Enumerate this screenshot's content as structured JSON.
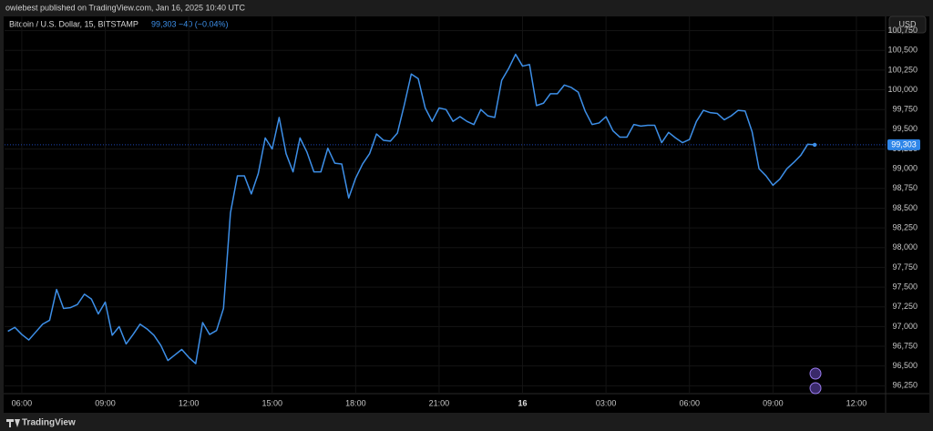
{
  "header": "owiebest published on TradingView.com, Jan 16, 2025 10:40 UTC",
  "footer": "TradingView",
  "chart_data": {
    "type": "line",
    "title": "Bitcoin / U.S. Dollar, 15, BITSTAMP",
    "legend_last": "99,303",
    "legend_change": "−40 (−0.04%)",
    "currency": "USD",
    "color": "#3d8fe8",
    "grid": true,
    "x": [
      5.5,
      5.75,
      6,
      6.25,
      6.5,
      6.75,
      7,
      7.25,
      7.5,
      7.75,
      8,
      8.25,
      8.5,
      8.75,
      9,
      9.25,
      9.5,
      9.75,
      10,
      10.25,
      10.5,
      10.75,
      11,
      11.25,
      11.5,
      11.75,
      12,
      12.25,
      12.5,
      12.75,
      13,
      13.25,
      13.5,
      13.75,
      14,
      14.25,
      14.5,
      14.75,
      15,
      15.25,
      15.5,
      15.75,
      16,
      16.25,
      16.5,
      16.75,
      17,
      17.25,
      17.5,
      17.75,
      18,
      18.25,
      18.5,
      18.75,
      19,
      19.25,
      19.5,
      19.75,
      20,
      20.25,
      20.5,
      20.75,
      21,
      21.25,
      21.5,
      21.75,
      22,
      22.25,
      22.5,
      22.75,
      23,
      23.25,
      23.5,
      23.75,
      24,
      24.25,
      24.5,
      24.75,
      25,
      25.25,
      25.5,
      25.75,
      26,
      26.25,
      26.5,
      26.75,
      27,
      27.25,
      27.5,
      27.75,
      28,
      28.25,
      28.5,
      28.75,
      29,
      29.25,
      29.5,
      29.75,
      30,
      30.25,
      30.5,
      30.75,
      31,
      31.25,
      31.5,
      31.75,
      32,
      32.25,
      32.5,
      32.75,
      33,
      33.25,
      33.5,
      33.75,
      34,
      34.25,
      34.5
    ],
    "values": [
      96940,
      96990,
      96900,
      96830,
      96930,
      97030,
      97080,
      97470,
      97230,
      97240,
      97280,
      97410,
      97350,
      97160,
      97310,
      96890,
      97000,
      96780,
      96900,
      97030,
      96970,
      96890,
      96760,
      96570,
      96640,
      96710,
      96610,
      96530,
      97050,
      96900,
      96950,
      97230,
      98440,
      98910,
      98910,
      98680,
      98940,
      99390,
      99250,
      99650,
      99190,
      98960,
      99390,
      99210,
      98960,
      98960,
      99260,
      99070,
      99060,
      98630,
      98880,
      99060,
      99190,
      99440,
      99360,
      99350,
      99450,
      99810,
      100200,
      100140,
      99770,
      99600,
      99770,
      99750,
      99600,
      99660,
      99600,
      99560,
      99750,
      99670,
      99650,
      100120,
      100270,
      100450,
      100300,
      100320,
      99800,
      99830,
      99950,
      99950,
      100060,
      100030,
      99970,
      99730,
      99560,
      99580,
      99660,
      99480,
      99400,
      99400,
      99560,
      99540,
      99550,
      99550,
      99330,
      99460,
      99390,
      99330,
      99370,
      99600,
      99740,
      99710,
      99700,
      99620,
      99670,
      99740,
      99730,
      99470,
      99000,
      98910,
      98790,
      98870,
      99000,
      99080,
      99170,
      99310,
      99303
    ],
    "last_price": 99303,
    "last_price_label": "99,303",
    "xlim": [
      5.38,
      37.05
    ],
    "ylim": [
      96150,
      100930
    ],
    "xticks": [
      {
        "value": 6,
        "label": "06:00"
      },
      {
        "value": 9,
        "label": "09:00"
      },
      {
        "value": 12,
        "label": "12:00"
      },
      {
        "value": 15,
        "label": "15:00"
      },
      {
        "value": 18,
        "label": "18:00"
      },
      {
        "value": 21,
        "label": "21:00"
      },
      {
        "value": 24,
        "label": "16"
      },
      {
        "value": 27,
        "label": "03:00"
      },
      {
        "value": 30,
        "label": "06:00"
      },
      {
        "value": 33,
        "label": "09:00"
      },
      {
        "value": 36,
        "label": "12:00"
      }
    ],
    "yticks": [
      {
        "value": 96250,
        "label": "96,250"
      },
      {
        "value": 96500,
        "label": "96,500"
      },
      {
        "value": 96750,
        "label": "96,750"
      },
      {
        "value": 97000,
        "label": "97,000"
      },
      {
        "value": 97250,
        "label": "97,250"
      },
      {
        "value": 97500,
        "label": "97,500"
      },
      {
        "value": 97750,
        "label": "97,750"
      },
      {
        "value": 98000,
        "label": "98,000"
      },
      {
        "value": 98250,
        "label": "98,250"
      },
      {
        "value": 98500,
        "label": "98,500"
      },
      {
        "value": 98750,
        "label": "98,750"
      },
      {
        "value": 99000,
        "label": "99,000"
      },
      {
        "value": 99250,
        "label": "99,250"
      },
      {
        "value": 99500,
        "label": "99,500"
      },
      {
        "value": 99750,
        "label": "99,750"
      },
      {
        "value": 100000,
        "label": "100,000"
      },
      {
        "value": 100250,
        "label": "100,250"
      },
      {
        "value": 100500,
        "label": "100,500"
      },
      {
        "value": 100750,
        "label": "100,750"
      }
    ]
  }
}
